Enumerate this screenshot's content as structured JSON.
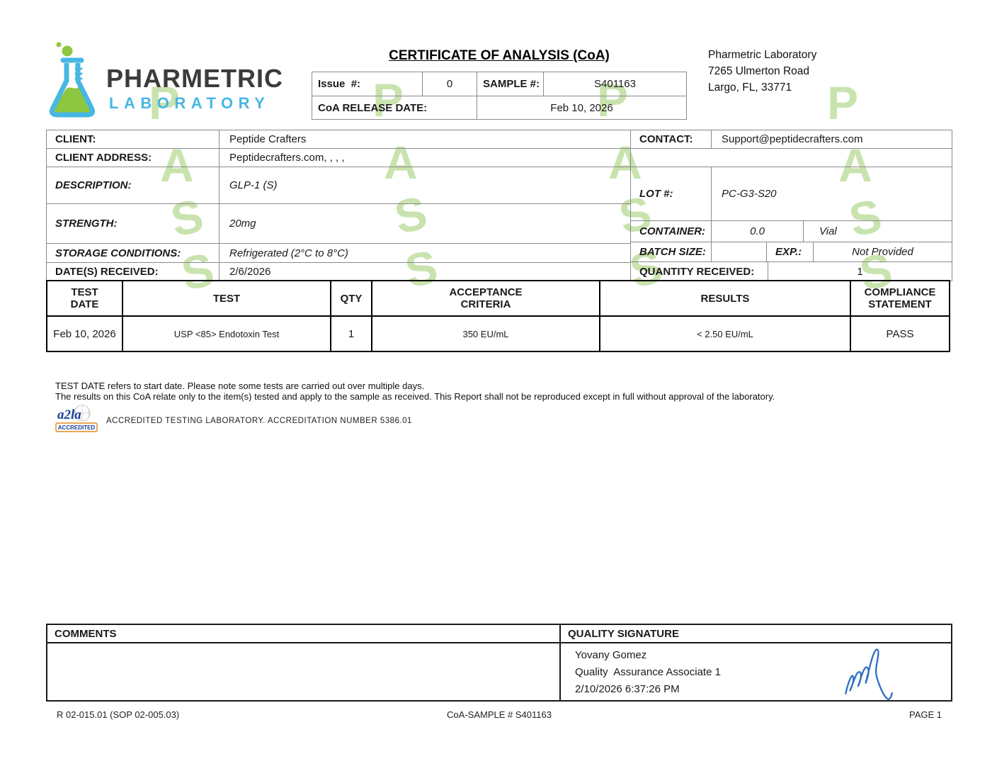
{
  "watermark": {
    "text": "PASS",
    "color": "#c9e3ae"
  },
  "header": {
    "logo_name": "PHARMETRIC",
    "logo_sub": "LABORATORY",
    "title": "CERTIFICATE OF ANALYSIS (CoA)",
    "issue_table": {
      "issue_label": "Issue  #:",
      "issue_value": "0",
      "sample_label": "SAMPLE #:",
      "sample_value": "S401163",
      "release_label": "CoA RELEASE DATE:",
      "release_value": "Feb 10, 2026"
    },
    "address": {
      "line1": "Pharmetric Laboratory",
      "line2": "7265 Ulmerton Road",
      "line3": "Largo, FL, 33771"
    }
  },
  "info": {
    "client": {
      "label": "CLIENT:",
      "value": "Peptide Crafters"
    },
    "client_address": {
      "label": "CLIENT ADDRESS:",
      "value": "Peptidecrafters.com, , , ,"
    },
    "description": {
      "label": "DESCRIPTION:",
      "value": "GLP-1 (S)"
    },
    "strength": {
      "label": "STRENGTH:",
      "value": "20mg"
    },
    "storage": {
      "label": "STORAGE CONDITIONS:",
      "value": "Refrigerated (2°C to 8°C)"
    },
    "date_received": {
      "label": "DATE(S) RECEIVED:",
      "value": "2/6/2026"
    },
    "contact": {
      "label": "CONTACT:",
      "value": "Support@peptidecrafters.com"
    },
    "lot": {
      "label": "LOT #:",
      "value": "PC-G3-S20"
    },
    "container": {
      "label": "CONTAINER:",
      "value": "0.0",
      "unit": "Vial"
    },
    "batch": {
      "label": "BATCH SIZE:",
      "value": "",
      "exp_label": "EXP.:",
      "exp_value": "Not Provided"
    },
    "quantity": {
      "label": "QUANTITY RECEIVED:",
      "value": "1"
    }
  },
  "tests": {
    "headers": {
      "date": "TEST DATE",
      "test": "TEST",
      "qty": "QTY",
      "criteria": "ACCEPTANCE CRITERIA",
      "results": "RESULTS",
      "compliance": "COMPLIANCE STATEMENT"
    },
    "rows": [
      {
        "date": "Feb 10, 2026",
        "test": "USP <85> Endotoxin Test",
        "qty": "1",
        "criteria": "350 EU/mL",
        "result": "< 2.50 EU/mL",
        "compliance": "PASS"
      }
    ]
  },
  "notes": {
    "line1": "TEST DATE refers to start date. Please note some tests are carried out over multiple days.",
    "line2": "The results on this CoA relate only to the item(s) tested and apply to the sample as received. This Report shall not be reproduced except in full without approval of the laboratory."
  },
  "accreditation": {
    "badge": "ACCREDITED",
    "logo_text": "a2la",
    "text": "ACCREDITED TESTING LABORATORY. ACCREDITATION NUMBER 5386.01"
  },
  "comments": {
    "header": "COMMENTS",
    "body": ""
  },
  "quality": {
    "header": "QUALITY SIGNATURE",
    "name": "Yovany Gomez",
    "role": "Quality  Assurance Associate 1",
    "datetime": "2/10/2026 6:37:26 PM"
  },
  "footer": {
    "left": "R 02-015.01 (SOP 02-005.03)",
    "center": "CoA-SAMPLE # S401163",
    "right": "PAGE 1"
  },
  "colors": {
    "brand_blue": "#47b7e3",
    "brand_green": "#8dc63f",
    "signature_blue": "#2e6fc0"
  }
}
